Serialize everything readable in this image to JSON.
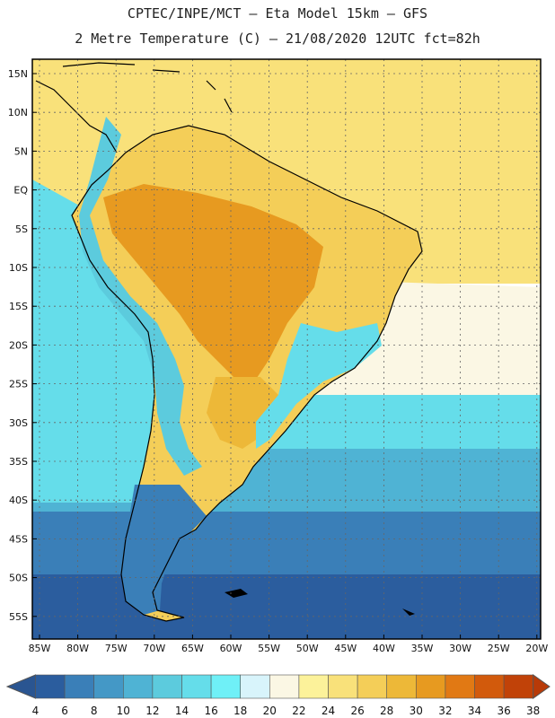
{
  "header": {
    "line1": "CPTEC/INPE/MCT –  Eta Model 15km – GFS",
    "line2": "2 Metre Temperature (C) – 21/08/2020 12UTC fct=82h"
  },
  "axes": {
    "lat_labels": [
      "15N",
      "10N",
      "5N",
      "EQ",
      "5S",
      "10S",
      "15S",
      "20S",
      "25S",
      "30S",
      "35S",
      "40S",
      "45S",
      "50S",
      "55S"
    ],
    "lon_labels": [
      "85W",
      "80W",
      "75W",
      "70W",
      "65W",
      "60W",
      "55W",
      "50W",
      "45W",
      "40W",
      "35W",
      "30W",
      "25W",
      "20W"
    ]
  },
  "colorbar": {
    "labels": [
      "4",
      "6",
      "8",
      "10",
      "12",
      "14",
      "16",
      "18",
      "20",
      "22",
      "24",
      "26",
      "28",
      "30",
      "32",
      "34",
      "36",
      "38"
    ],
    "colors": [
      "#2b5d9e",
      "#3a7fb8",
      "#4498c6",
      "#4fb3d4",
      "#5ccbdd",
      "#65ddea",
      "#6ff0f7",
      "#d8f4fb",
      "#fbf7e4",
      "#fcf29a",
      "#f9e17a",
      "#f4ce58",
      "#edb838",
      "#e79a20",
      "#e17914",
      "#d25a0c",
      "#c14208"
    ],
    "lower_arrow_color": "#2a5591",
    "upper_arrow_color": "#b83a08"
  },
  "map_colors": {
    "ocean_far_south": "#2b5d9e",
    "ocean_south": "#3a7fb8",
    "ocean_mid": "#4fb3d4",
    "ocean_cool": "#65ddea",
    "ocean_warm": "#fbf7e4",
    "ocean_tropical": "#f9e17a",
    "land_hot": "#e79a20",
    "land_warm": "#edb838",
    "land_mild": "#f4ce58",
    "andes": "#5ccbdd",
    "patagonia": "#3a7fb8",
    "coastline": "#000000"
  }
}
